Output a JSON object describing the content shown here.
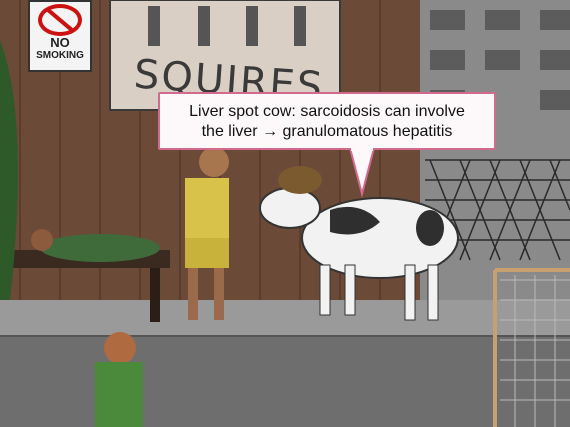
{
  "sign": {
    "line1": "NO",
    "line2": "SMOKING",
    "icon": "no-smoking-icon"
  },
  "poster": {
    "title": "SQUIRES"
  },
  "callout": {
    "line1": "Liver spot cow: sarcoidosis can involve",
    "line2": "the liver → granulomatous hepatitis"
  },
  "colors": {
    "callout_border": "#d26a8e",
    "wall": "#6b4a37",
    "floor": "#6e6e6e",
    "cow_white": "#f2f2f2",
    "cow_spot": "#2f2f2f"
  }
}
